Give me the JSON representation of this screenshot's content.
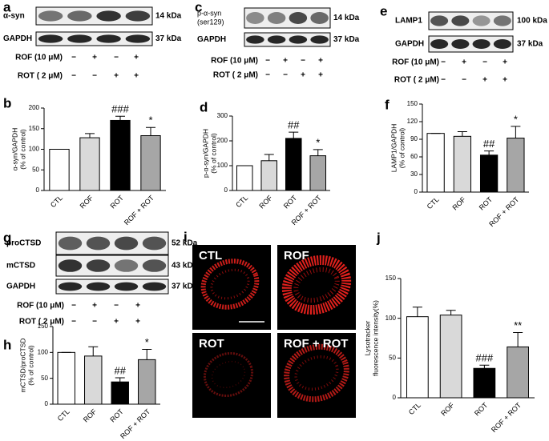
{
  "blots": [
    {
      "panel": "a",
      "bands": [
        {
          "label": "α-syn",
          "kda": "14 kDa"
        },
        {
          "label": "GAPDH",
          "kda": "37 kDa"
        }
      ],
      "treatments": [
        {
          "label": "ROF (10 μM)",
          "signs": [
            "−",
            "+",
            "−",
            "+"
          ]
        },
        {
          "label": "ROT ( 2  μM)",
          "signs": [
            "−",
            "−",
            "+",
            "+"
          ]
        }
      ]
    },
    {
      "panel": "c",
      "bands": [
        {
          "label": [
            "p-α-syn",
            "(ser129)"
          ],
          "kda": "14 kDa"
        },
        {
          "label": "GAPDH",
          "kda": "37 kDa"
        }
      ],
      "treatments": [
        {
          "label": "ROF (10 μM)",
          "signs": [
            "−",
            "+",
            "−",
            "+"
          ]
        },
        {
          "label": "ROT ( 2  μM)",
          "signs": [
            "−",
            "−",
            "+",
            "+"
          ]
        }
      ]
    },
    {
      "panel": "e",
      "bands": [
        {
          "label": "LAMP1",
          "kda": "100 kDa"
        },
        {
          "label": "GAPDH",
          "kda": "37 kDa"
        }
      ],
      "treatments": [
        {
          "label": "ROF (10 μM)",
          "signs": [
            "−",
            "+",
            "−",
            "+"
          ]
        },
        {
          "label": "ROT ( 2  μM)",
          "signs": [
            "−",
            "−",
            "+",
            "+"
          ]
        }
      ]
    },
    {
      "panel": "g",
      "bands": [
        {
          "label": "proCTSD",
          "kda": "52 kDa"
        },
        {
          "label": "mCTSD",
          "kda": "43 kDa"
        },
        {
          "label": "GAPDH",
          "kda": "37 kDa"
        }
      ],
      "treatments": [
        {
          "label": "ROF (10 μM)",
          "signs": [
            "−",
            "+",
            "−",
            "+"
          ]
        },
        {
          "label": "ROT ( 2  μM)",
          "signs": [
            "−",
            "−",
            "+",
            "+"
          ]
        }
      ]
    }
  ],
  "images": {
    "panel": "i",
    "labels": [
      "CTL",
      "ROF",
      "ROT",
      "ROF + ROT"
    ]
  },
  "chart_data": [
    {
      "type": "bar",
      "panel": "b",
      "ylabel": [
        "α-syn/GAPDH",
        "(% of control)"
      ],
      "categories": [
        "CTL",
        "ROF",
        "ROT",
        "ROF + ROT"
      ],
      "values": [
        100,
        128,
        170,
        133
      ],
      "errors": [
        0,
        10,
        10,
        20
      ],
      "annotations": [
        null,
        null,
        "###",
        "*"
      ],
      "colors": [
        "#ffffff",
        "#d9d9d9",
        "#000000",
        "#a6a6a6"
      ],
      "ylim": [
        0,
        200
      ],
      "yticks": [
        0,
        50,
        100,
        150,
        200
      ]
    },
    {
      "type": "bar",
      "panel": "d",
      "ylabel": [
        "p-α-syn/GAPDH",
        "(% of control)"
      ],
      "categories": [
        "CTL",
        "ROF",
        "ROT",
        "ROF + ROT"
      ],
      "values": [
        100,
        120,
        210,
        140
      ],
      "errors": [
        0,
        25,
        25,
        25
      ],
      "annotations": [
        null,
        null,
        "##",
        "*"
      ],
      "colors": [
        "#ffffff",
        "#d9d9d9",
        "#000000",
        "#a6a6a6"
      ],
      "ylim": [
        0,
        300
      ],
      "yticks": [
        0,
        100,
        200,
        300
      ]
    },
    {
      "type": "bar",
      "panel": "f",
      "ylabel": [
        "LAMP1/GAPDH",
        "(% of control)"
      ],
      "categories": [
        "CTL",
        "ROF",
        "ROT",
        "ROF + ROT"
      ],
      "values": [
        100,
        95,
        63,
        92
      ],
      "errors": [
        0,
        8,
        7,
        20
      ],
      "annotations": [
        null,
        null,
        "##",
        "*"
      ],
      "colors": [
        "#ffffff",
        "#d9d9d9",
        "#000000",
        "#a6a6a6"
      ],
      "ylim": [
        0,
        150
      ],
      "yticks": [
        0,
        30,
        60,
        90,
        120,
        150
      ]
    },
    {
      "type": "bar",
      "panel": "h",
      "ylabel": [
        "mCTSD/proCTSD",
        "(% of control)"
      ],
      "categories": [
        "CTL",
        "ROF",
        "ROT",
        "ROF + ROT"
      ],
      "values": [
        100,
        93,
        43,
        86
      ],
      "errors": [
        0,
        18,
        8,
        20
      ],
      "annotations": [
        null,
        null,
        "##",
        "*"
      ],
      "colors": [
        "#ffffff",
        "#d9d9d9",
        "#000000",
        "#a6a6a6"
      ],
      "ylim": [
        0,
        150
      ],
      "yticks": [
        0,
        50,
        100,
        150
      ]
    },
    {
      "type": "bar",
      "panel": "j",
      "ylabel": [
        "Lysotracker",
        "fluorescence intensity(%)"
      ],
      "categories": [
        "CTL",
        "ROF",
        "ROT",
        "ROF + ROT"
      ],
      "values": [
        102,
        104,
        37,
        64
      ],
      "errors": [
        12,
        6,
        4,
        18
      ],
      "annotations": [
        null,
        null,
        "###",
        "**"
      ],
      "colors": [
        "#ffffff",
        "#d9d9d9",
        "#000000",
        "#a6a6a6"
      ],
      "ylim": [
        0,
        150
      ],
      "yticks": [
        0,
        50,
        100,
        150
      ]
    }
  ]
}
